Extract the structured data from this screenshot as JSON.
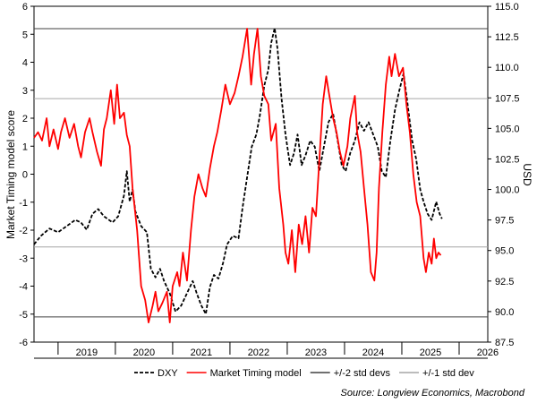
{
  "chart_data": {
    "type": "line",
    "xlabel": "",
    "ylabel_left": "Market Timing model score",
    "ylabel_right": "USD",
    "x_ticks": [
      "2019",
      "2020",
      "2021",
      "2022",
      "2023",
      "2024",
      "2025",
      "2026"
    ],
    "x_range": [
      2018.58,
      2026.5
    ],
    "ylim_left": [
      -6,
      6
    ],
    "ylim_right": [
      87.5,
      115.0
    ],
    "yticks_left": [
      -6,
      -5,
      -4,
      -3,
      -2,
      -1,
      0,
      1,
      2,
      3,
      4,
      5,
      6
    ],
    "yticks_right": [
      "87.5",
      "90.0",
      "92.5",
      "95.0",
      "97.5",
      "100.0",
      "102.5",
      "105.0",
      "107.5",
      "110.0",
      "112.5",
      "115.0"
    ],
    "grid": false,
    "legend_position": "bottom",
    "reference_lines": [
      {
        "name": "+/-2 std devs",
        "values": [
          5.2,
          -5.1
        ],
        "color": "#404040"
      },
      {
        "name": "+/-1 std dev",
        "values": [
          2.7,
          -2.6
        ],
        "color": "#a6a6a6"
      }
    ],
    "series": [
      {
        "name": "DXY",
        "axis": "right",
        "color": "#000000",
        "style": "dashed",
        "points": [
          [
            2018.58,
            95.5
          ],
          [
            2018.7,
            96.2
          ],
          [
            2018.85,
            96.8
          ],
          [
            2019.0,
            96.5
          ],
          [
            2019.15,
            97.0
          ],
          [
            2019.3,
            97.5
          ],
          [
            2019.4,
            97.3
          ],
          [
            2019.5,
            96.7
          ],
          [
            2019.6,
            98.0
          ],
          [
            2019.7,
            98.4
          ],
          [
            2019.8,
            97.8
          ],
          [
            2019.95,
            97.3
          ],
          [
            2020.05,
            97.8
          ],
          [
            2020.15,
            99.5
          ],
          [
            2020.2,
            101.5
          ],
          [
            2020.25,
            99.0
          ],
          [
            2020.3,
            100.0
          ],
          [
            2020.35,
            98.2
          ],
          [
            2020.45,
            97.0
          ],
          [
            2020.55,
            96.5
          ],
          [
            2020.62,
            93.5
          ],
          [
            2020.7,
            92.8
          ],
          [
            2020.78,
            93.5
          ],
          [
            2020.85,
            92.5
          ],
          [
            2020.95,
            91.5
          ],
          [
            2021.05,
            90.0
          ],
          [
            2021.15,
            90.5
          ],
          [
            2021.25,
            91.5
          ],
          [
            2021.35,
            92.5
          ],
          [
            2021.42,
            91.5
          ],
          [
            2021.5,
            90.5
          ],
          [
            2021.58,
            89.8
          ],
          [
            2021.65,
            92.0
          ],
          [
            2021.72,
            93.0
          ],
          [
            2021.8,
            92.7
          ],
          [
            2021.88,
            94.0
          ],
          [
            2021.95,
            95.5
          ],
          [
            2022.05,
            96.2
          ],
          [
            2022.15,
            96.0
          ],
          [
            2022.22,
            98.5
          ],
          [
            2022.3,
            101.0
          ],
          [
            2022.38,
            103.5
          ],
          [
            2022.46,
            104.5
          ],
          [
            2022.52,
            106.0
          ],
          [
            2022.6,
            108.5
          ],
          [
            2022.67,
            109.8
          ],
          [
            2022.72,
            112.0
          ],
          [
            2022.78,
            113.2
          ],
          [
            2022.83,
            111.5
          ],
          [
            2022.9,
            107.5
          ],
          [
            2022.97,
            104.5
          ],
          [
            2023.05,
            102.0
          ],
          [
            2023.12,
            103.0
          ],
          [
            2023.18,
            104.5
          ],
          [
            2023.25,
            102.0
          ],
          [
            2023.32,
            102.8
          ],
          [
            2023.4,
            104.0
          ],
          [
            2023.48,
            103.5
          ],
          [
            2023.56,
            101.5
          ],
          [
            2023.64,
            103.5
          ],
          [
            2023.72,
            105.5
          ],
          [
            2023.8,
            106.2
          ],
          [
            2023.88,
            104.0
          ],
          [
            2023.95,
            102.0
          ],
          [
            2024.02,
            101.5
          ],
          [
            2024.1,
            103.0
          ],
          [
            2024.18,
            104.0
          ],
          [
            2024.26,
            105.5
          ],
          [
            2024.34,
            104.8
          ],
          [
            2024.42,
            105.5
          ],
          [
            2024.5,
            104.5
          ],
          [
            2024.58,
            103.5
          ],
          [
            2024.65,
            101.5
          ],
          [
            2024.72,
            101.0
          ],
          [
            2024.8,
            104.0
          ],
          [
            2024.88,
            106.5
          ],
          [
            2024.95,
            108.0
          ],
          [
            2025.03,
            109.5
          ],
          [
            2025.1,
            107.0
          ],
          [
            2025.18,
            104.0
          ],
          [
            2025.25,
            102.5
          ],
          [
            2025.32,
            100.0
          ],
          [
            2025.38,
            99.0
          ],
          [
            2025.45,
            98.0
          ],
          [
            2025.52,
            97.5
          ],
          [
            2025.6,
            99.0
          ],
          [
            2025.66,
            98.0
          ],
          [
            2025.7,
            97.6
          ]
        ]
      },
      {
        "name": "Market Timing model",
        "axis": "left",
        "color": "#ff0000",
        "style": "solid",
        "points": [
          [
            2018.58,
            1.3
          ],
          [
            2018.65,
            1.5
          ],
          [
            2018.72,
            1.2
          ],
          [
            2018.8,
            2.0
          ],
          [
            2018.85,
            1.0
          ],
          [
            2018.92,
            1.6
          ],
          [
            2019.0,
            0.9
          ],
          [
            2019.05,
            1.5
          ],
          [
            2019.12,
            2.0
          ],
          [
            2019.2,
            1.3
          ],
          [
            2019.28,
            1.8
          ],
          [
            2019.35,
            1.0
          ],
          [
            2019.4,
            0.6
          ],
          [
            2019.47,
            1.5
          ],
          [
            2019.55,
            2.0
          ],
          [
            2019.6,
            1.5
          ],
          [
            2019.68,
            0.8
          ],
          [
            2019.75,
            0.3
          ],
          [
            2019.8,
            1.6
          ],
          [
            2019.85,
            2.0
          ],
          [
            2019.92,
            3.0
          ],
          [
            2019.98,
            1.8
          ],
          [
            2020.03,
            3.2
          ],
          [
            2020.08,
            2.0
          ],
          [
            2020.15,
            2.2
          ],
          [
            2020.2,
            1.4
          ],
          [
            2020.25,
            1.0
          ],
          [
            2020.3,
            -0.5
          ],
          [
            2020.38,
            -2.0
          ],
          [
            2020.45,
            -4.0
          ],
          [
            2020.52,
            -4.5
          ],
          [
            2020.58,
            -5.3
          ],
          [
            2020.65,
            -4.7
          ],
          [
            2020.7,
            -4.2
          ],
          [
            2020.75,
            -4.9
          ],
          [
            2020.82,
            -4.6
          ],
          [
            2020.9,
            -4.2
          ],
          [
            2020.95,
            -5.3
          ],
          [
            2021.0,
            -4.0
          ],
          [
            2021.08,
            -3.5
          ],
          [
            2021.12,
            -4.0
          ],
          [
            2021.18,
            -2.8
          ],
          [
            2021.25,
            -3.8
          ],
          [
            2021.32,
            -2.0
          ],
          [
            2021.38,
            -0.8
          ],
          [
            2021.45,
            0.0
          ],
          [
            2021.52,
            -0.5
          ],
          [
            2021.58,
            -0.8
          ],
          [
            2021.65,
            0.2
          ],
          [
            2021.72,
            1.0
          ],
          [
            2021.78,
            1.5
          ],
          [
            2021.85,
            2.3
          ],
          [
            2021.92,
            3.2
          ],
          [
            2022.0,
            2.5
          ],
          [
            2022.08,
            2.9
          ],
          [
            2022.15,
            3.5
          ],
          [
            2022.22,
            4.2
          ],
          [
            2022.3,
            5.2
          ],
          [
            2022.37,
            3.2
          ],
          [
            2022.42,
            4.3
          ],
          [
            2022.48,
            5.2
          ],
          [
            2022.54,
            3.5
          ],
          [
            2022.6,
            2.8
          ],
          [
            2022.67,
            2.5
          ],
          [
            2022.72,
            1.2
          ],
          [
            2022.8,
            1.8
          ],
          [
            2022.86,
            -0.5
          ],
          [
            2022.93,
            -1.8
          ],
          [
            2022.97,
            -2.8
          ],
          [
            2023.02,
            -3.2
          ],
          [
            2023.08,
            -2.0
          ],
          [
            2023.14,
            -3.5
          ],
          [
            2023.2,
            -1.8
          ],
          [
            2023.26,
            -2.5
          ],
          [
            2023.32,
            -1.5
          ],
          [
            2023.38,
            -2.8
          ],
          [
            2023.44,
            -1.2
          ],
          [
            2023.5,
            -1.5
          ],
          [
            2023.56,
            0.5
          ],
          [
            2023.62,
            2.5
          ],
          [
            2023.68,
            3.5
          ],
          [
            2023.72,
            3.0
          ],
          [
            2023.8,
            2.0
          ],
          [
            2023.86,
            1.5
          ],
          [
            2023.92,
            0.8
          ],
          [
            2023.98,
            0.3
          ],
          [
            2024.05,
            1.0
          ],
          [
            2024.1,
            2.0
          ],
          [
            2024.18,
            2.8
          ],
          [
            2024.22,
            1.5
          ],
          [
            2024.28,
            0.8
          ],
          [
            2024.34,
            -0.5
          ],
          [
            2024.4,
            -1.8
          ],
          [
            2024.46,
            -3.5
          ],
          [
            2024.52,
            -3.8
          ],
          [
            2024.56,
            -2.8
          ],
          [
            2024.6,
            -0.5
          ],
          [
            2024.66,
            1.5
          ],
          [
            2024.72,
            3.2
          ],
          [
            2024.78,
            4.2
          ],
          [
            2024.82,
            3.5
          ],
          [
            2024.88,
            4.3
          ],
          [
            2024.95,
            3.5
          ],
          [
            2025.02,
            3.8
          ],
          [
            2025.08,
            2.5
          ],
          [
            2025.14,
            1.5
          ],
          [
            2025.2,
            0.0
          ],
          [
            2025.26,
            -1.0
          ],
          [
            2025.32,
            -1.5
          ],
          [
            2025.38,
            -3.0
          ],
          [
            2025.42,
            -3.5
          ],
          [
            2025.47,
            -2.8
          ],
          [
            2025.52,
            -3.2
          ],
          [
            2025.56,
            -2.3
          ],
          [
            2025.6,
            -3.0
          ],
          [
            2025.64,
            -2.8
          ],
          [
            2025.68,
            -2.9
          ]
        ]
      }
    ],
    "legend": [
      {
        "label": "DXY",
        "style": "dashed",
        "color": "#000000"
      },
      {
        "label": "Market Timing model",
        "style": "solid",
        "color": "#ff0000"
      },
      {
        "label": "+/-2 std devs",
        "style": "solid",
        "color": "#404040"
      },
      {
        "label": "+/-1 std dev",
        "style": "solid",
        "color": "#a6a6a6"
      }
    ],
    "source": "Source: Longview Economics, Macrobond"
  }
}
